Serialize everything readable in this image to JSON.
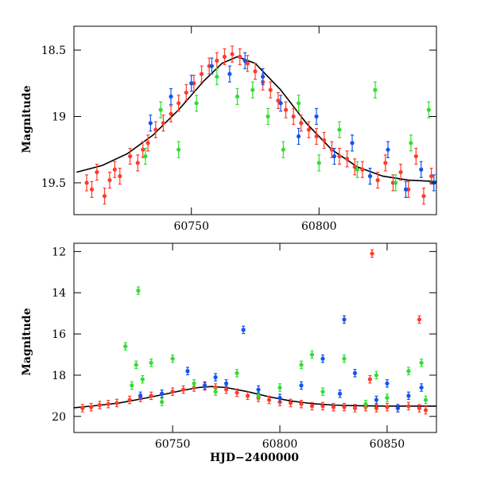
{
  "colors": {
    "red": "#ff3b2b",
    "green": "#33dd33",
    "blue": "#1155ee",
    "model": "#000000"
  },
  "chart_data": [
    {
      "type": "scatter",
      "panel": "top",
      "ylabel": "Magnitude",
      "xlabel": "",
      "xlim": [
        60704,
        60846
      ],
      "ylim": [
        19.74,
        18.32
      ],
      "y_inverted": true,
      "xticks": [
        60750,
        60800
      ],
      "xtick_labels": [
        "60750",
        "60800"
      ],
      "yticks": [
        18.5,
        19,
        19.5
      ],
      "ytick_labels": [
        "18.5",
        "19",
        "19.5"
      ],
      "series": [
        {
          "color": "red",
          "points": [
            [
              60709,
              19.5
            ],
            [
              60711,
              19.55
            ],
            [
              60713,
              19.42
            ],
            [
              60716,
              19.6
            ],
            [
              60718,
              19.48
            ],
            [
              60720,
              19.4
            ],
            [
              60722,
              19.45
            ],
            [
              60726,
              19.3
            ],
            [
              60729,
              19.35
            ],
            [
              60731,
              19.25
            ],
            [
              60733,
              19.2
            ],
            [
              60736,
              19.1
            ],
            [
              60739,
              19.05
            ],
            [
              60742,
              18.98
            ],
            [
              60745,
              18.9
            ],
            [
              60748,
              18.82
            ],
            [
              60751,
              18.75
            ],
            [
              60754,
              18.68
            ],
            [
              60757,
              18.62
            ],
            [
              60760,
              18.58
            ],
            [
              60763,
              18.55
            ],
            [
              60766,
              18.53
            ],
            [
              60769,
              18.55
            ],
            [
              60772,
              18.6
            ],
            [
              60775,
              18.66
            ],
            [
              60778,
              18.74
            ],
            [
              60781,
              18.8
            ],
            [
              60784,
              18.88
            ],
            [
              60787,
              18.95
            ],
            [
              60790,
              19.0
            ],
            [
              60793,
              19.05
            ],
            [
              60796,
              19.1
            ],
            [
              60799,
              19.15
            ],
            [
              60802,
              19.18
            ],
            [
              60805,
              19.25
            ],
            [
              60808,
              19.3
            ],
            [
              60811,
              19.32
            ],
            [
              60814,
              19.38
            ],
            [
              60817,
              19.4
            ],
            [
              60820,
              19.45
            ],
            [
              60823,
              19.48
            ],
            [
              60826,
              19.35
            ],
            [
              60829,
              19.5
            ],
            [
              60832,
              19.42
            ],
            [
              60835,
              19.55
            ],
            [
              60838,
              19.3
            ],
            [
              60841,
              19.6
            ],
            [
              60844,
              19.45
            ]
          ]
        },
        {
          "color": "green",
          "points": [
            [
              60732,
              19.3
            ],
            [
              60738,
              18.95
            ],
            [
              60745,
              19.25
            ],
            [
              60752,
              18.9
            ],
            [
              60760,
              18.7
            ],
            [
              60768,
              18.85
            ],
            [
              60774,
              18.8
            ],
            [
              60780,
              19.0
            ],
            [
              60786,
              19.25
            ],
            [
              60792,
              18.9
            ],
            [
              60800,
              19.35
            ],
            [
              60808,
              19.1
            ],
            [
              60815,
              19.4
            ],
            [
              60822,
              18.8
            ],
            [
              60830,
              19.5
            ],
            [
              60836,
              19.2
            ],
            [
              60843,
              18.95
            ]
          ]
        },
        {
          "color": "blue",
          "points": [
            [
              60734,
              19.05
            ],
            [
              60742,
              18.85
            ],
            [
              60750,
              18.75
            ],
            [
              60758,
              18.62
            ],
            [
              60765,
              18.68
            ],
            [
              60771,
              18.58
            ],
            [
              60778,
              18.7
            ],
            [
              60785,
              18.9
            ],
            [
              60792,
              19.15
            ],
            [
              60799,
              19.0
            ],
            [
              60806,
              19.3
            ],
            [
              60813,
              19.2
            ],
            [
              60820,
              19.45
            ],
            [
              60827,
              19.25
            ],
            [
              60834,
              19.55
            ],
            [
              60840,
              19.4
            ],
            [
              60845,
              19.5
            ]
          ]
        }
      ],
      "model": {
        "x": [
          60705,
          60715,
          60725,
          60735,
          60745,
          60755,
          60762,
          60768,
          60775,
          60785,
          60795,
          60805,
          60815,
          60825,
          60835,
          60846
        ],
        "y": [
          19.42,
          19.37,
          19.28,
          19.14,
          18.95,
          18.73,
          18.6,
          18.55,
          18.6,
          18.8,
          19.05,
          19.25,
          19.38,
          19.45,
          19.48,
          19.49
        ]
      }
    },
    {
      "type": "scatter",
      "panel": "bottom",
      "ylabel": "Magnitude",
      "xlabel": "HJD−2400000",
      "xlim": [
        60704,
        60873
      ],
      "ylim": [
        20.78,
        11.6
      ],
      "y_inverted": true,
      "xticks": [
        60750,
        60800,
        60850
      ],
      "xtick_labels": [
        "60750",
        "60800",
        "60850"
      ],
      "yticks": [
        12,
        14,
        16,
        18,
        20
      ],
      "ytick_labels": [
        "12",
        "14",
        "16",
        "18",
        "20"
      ],
      "series": [
        {
          "color": "red",
          "points": [
            [
              60708,
              19.6
            ],
            [
              60712,
              19.55
            ],
            [
              60716,
              19.45
            ],
            [
              60720,
              19.4
            ],
            [
              60724,
              19.35
            ],
            [
              60730,
              19.2
            ],
            [
              60735,
              19.1
            ],
            [
              60740,
              19.0
            ],
            [
              60745,
              18.9
            ],
            [
              60750,
              18.8
            ],
            [
              60755,
              18.7
            ],
            [
              60760,
              18.6
            ],
            [
              60765,
              18.55
            ],
            [
              60770,
              18.6
            ],
            [
              60775,
              18.7
            ],
            [
              60780,
              18.85
            ],
            [
              60785,
              19.0
            ],
            [
              60790,
              19.1
            ],
            [
              60795,
              19.2
            ],
            [
              60800,
              19.3
            ],
            [
              60805,
              19.35
            ],
            [
              60810,
              19.4
            ],
            [
              60815,
              19.5
            ],
            [
              60820,
              19.5
            ],
            [
              60825,
              19.55
            ],
            [
              60830,
              19.55
            ],
            [
              60835,
              19.6
            ],
            [
              60840,
              19.55
            ],
            [
              60842,
              18.2
            ],
            [
              60843,
              12.1
            ],
            [
              60845,
              19.6
            ],
            [
              60850,
              19.55
            ],
            [
              60855,
              19.6
            ],
            [
              60860,
              19.5
            ],
            [
              60865,
              19.6
            ],
            [
              60865,
              15.3
            ],
            [
              60868,
              19.7
            ]
          ]
        },
        {
          "color": "green",
          "points": [
            [
              60728,
              16.6
            ],
            [
              60731,
              18.5
            ],
            [
              60733,
              17.5
            ],
            [
              60734,
              13.9
            ],
            [
              60736,
              18.2
            ],
            [
              60740,
              17.4
            ],
            [
              60745,
              19.3
            ],
            [
              60750,
              17.2
            ],
            [
              60760,
              18.4
            ],
            [
              60770,
              18.8
            ],
            [
              60780,
              17.9
            ],
            [
              60790,
              19.0
            ],
            [
              60800,
              18.6
            ],
            [
              60810,
              17.5
            ],
            [
              60815,
              17.0
            ],
            [
              60820,
              18.8
            ],
            [
              60830,
              17.2
            ],
            [
              60840,
              19.4
            ],
            [
              60845,
              18.0
            ],
            [
              60850,
              19.1
            ],
            [
              60860,
              17.8
            ],
            [
              60866,
              17.4
            ],
            [
              60868,
              19.2
            ]
          ]
        },
        {
          "color": "blue",
          "points": [
            [
              60735,
              19.0
            ],
            [
              60745,
              18.9
            ],
            [
              60757,
              17.8
            ],
            [
              60765,
              18.5
            ],
            [
              60770,
              18.1
            ],
            [
              60775,
              18.4
            ],
            [
              60783,
              15.8
            ],
            [
              60790,
              18.7
            ],
            [
              60800,
              19.1
            ],
            [
              60810,
              18.5
            ],
            [
              60820,
              17.2
            ],
            [
              60828,
              18.9
            ],
            [
              60830,
              15.3
            ],
            [
              60835,
              17.9
            ],
            [
              60845,
              19.2
            ],
            [
              60850,
              18.4
            ],
            [
              60855,
              19.6
            ],
            [
              60860,
              19.0
            ],
            [
              60866,
              18.6
            ]
          ]
        }
      ],
      "model": {
        "x": [
          60704,
          60715,
          60725,
          60735,
          60745,
          60755,
          60762,
          60768,
          60775,
          60785,
          60795,
          60805,
          60815,
          60825,
          60835,
          60850,
          60873
        ],
        "y": [
          19.58,
          19.47,
          19.35,
          19.16,
          18.95,
          18.73,
          18.6,
          18.55,
          18.6,
          18.8,
          19.05,
          19.25,
          19.38,
          19.45,
          19.48,
          19.5,
          19.5
        ]
      }
    }
  ]
}
